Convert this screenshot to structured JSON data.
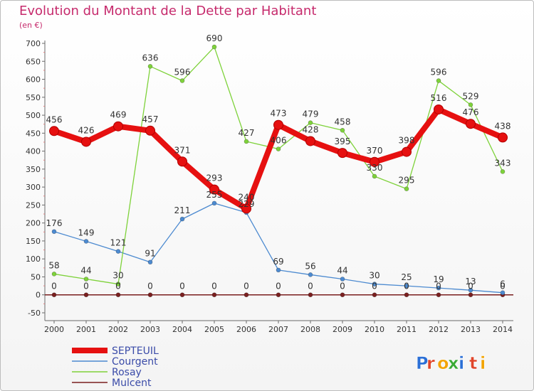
{
  "title": "Evolution du Montant de la Dette par Habitant",
  "unit_label": "(en €)",
  "logo_text": "Proxiti",
  "chart_data": {
    "type": "line",
    "x": [
      2000,
      2001,
      2002,
      2003,
      2004,
      2005,
      2006,
      2007,
      2008,
      2009,
      2010,
      2011,
      2012,
      2013,
      2014
    ],
    "ylim": [
      -50,
      700
    ],
    "yticks": [
      -50,
      0,
      50,
      100,
      150,
      200,
      250,
      300,
      350,
      400,
      450,
      500,
      550,
      600,
      650,
      700
    ],
    "grid": false,
    "legend_position": "bottom-left",
    "series": [
      {
        "name": "SEPTEUIL",
        "color": "#e61010",
        "values": [
          456,
          426,
          469,
          457,
          371,
          293,
          240,
          473,
          428,
          395,
          370,
          398,
          516,
          476,
          438
        ]
      },
      {
        "name": "Courgent",
        "color": "#4c8ad0",
        "values": [
          176,
          149,
          121,
          91,
          211,
          255,
          229,
          69,
          56,
          44,
          30,
          25,
          19,
          13,
          6
        ]
      },
      {
        "name": "Rosay",
        "color": "#7ed23a",
        "values": [
          58,
          44,
          30,
          636,
          596,
          690,
          427,
          406,
          479,
          458,
          330,
          295,
          596,
          529,
          343
        ]
      },
      {
        "name": "Mulcent",
        "color": "#7a1f1f",
        "values": [
          0,
          0,
          0,
          0,
          0,
          0,
          0,
          0,
          0,
          0,
          0,
          0,
          0,
          0,
          0
        ]
      }
    ]
  }
}
